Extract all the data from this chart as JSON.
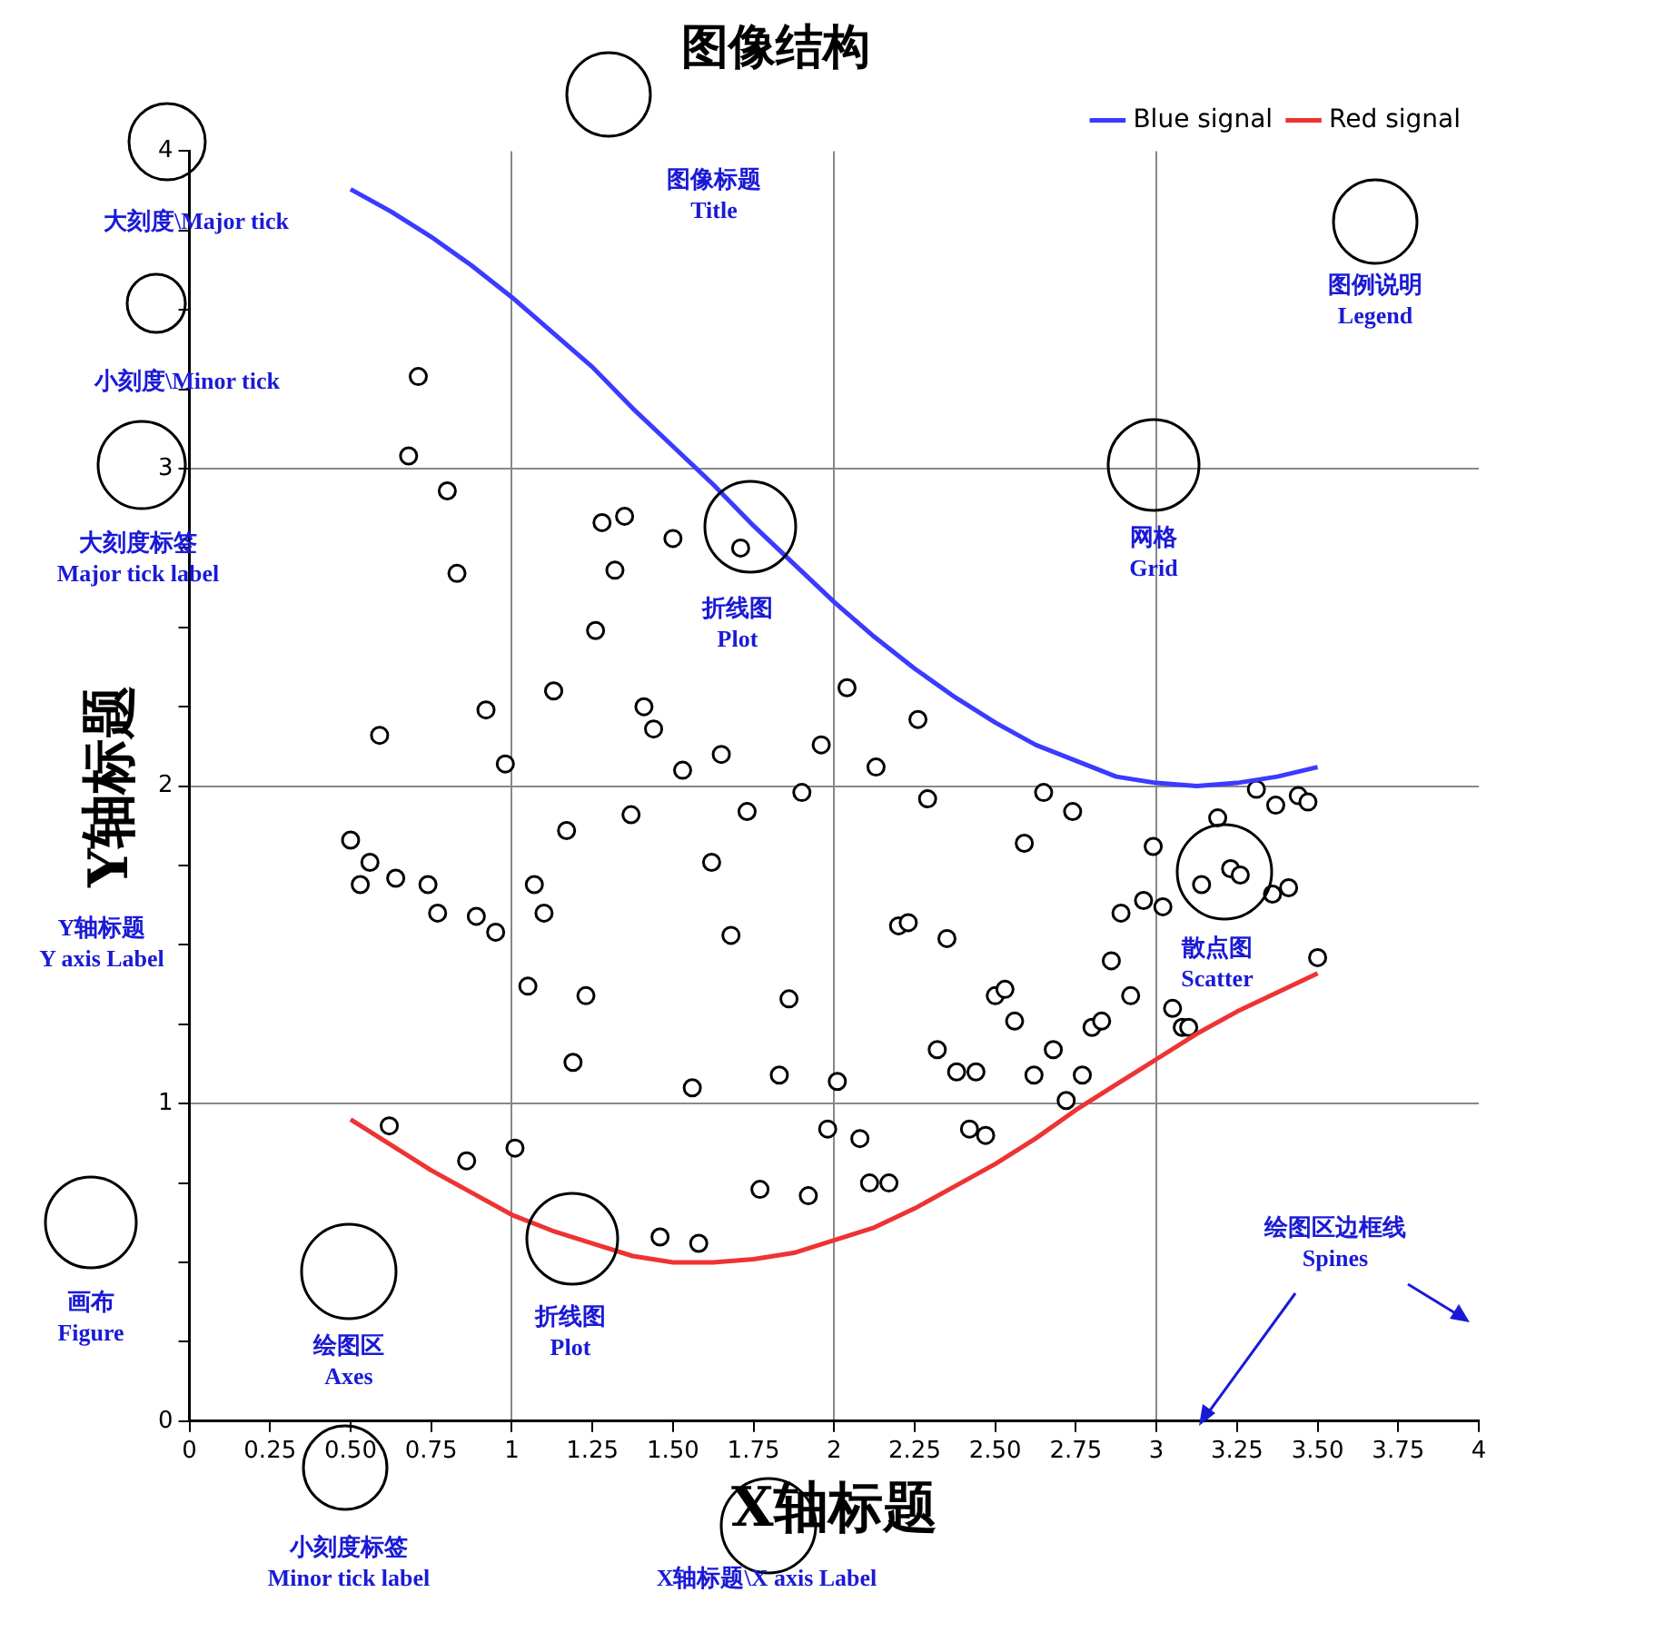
{
  "chart_data": {
    "type": "line",
    "title": "图像结构",
    "xlabel": "X轴标题",
    "ylabel": "Y轴标题",
    "xlim": [
      0,
      4
    ],
    "ylim": [
      0,
      4
    ],
    "xticks": [
      0,
      0.25,
      {
        "value": 0.5,
        "label": "0.50"
      },
      0.75,
      1,
      1.25,
      {
        "value": 1.5,
        "label": "1.50"
      },
      1.75,
      2,
      2.25,
      {
        "value": 2.5,
        "label": "2.50"
      },
      2.75,
      3,
      3.25,
      {
        "value": 3.5,
        "label": "3.50"
      },
      3.75,
      4
    ],
    "yticks": [
      0,
      {
        "value": 0.25,
        "label": null
      },
      {
        "value": 0.5,
        "label": null
      },
      {
        "value": 0.75,
        "label": null
      },
      1,
      {
        "value": 1.25,
        "label": null
      },
      {
        "value": 1.5,
        "label": null
      },
      {
        "value": 1.75,
        "label": null
      },
      2,
      {
        "value": 2.25,
        "label": null
      },
      {
        "value": 2.5,
        "label": null
      },
      {
        "value": 2.75,
        "label": null
      },
      3,
      {
        "value": 3.25,
        "label": null
      },
      {
        "value": 3.5,
        "label": null
      },
      {
        "value": 3.75,
        "label": null
      },
      4
    ],
    "grid": true,
    "legend": "top right",
    "line_style": "solid",
    "series": [
      {
        "name": "Blue signal",
        "type": "line",
        "color": "#3b3bff",
        "marker": "none",
        "x": [
          0.5,
          0.625,
          0.75,
          0.875,
          1,
          1.125,
          1.25,
          1.375,
          1.5,
          1.625,
          1.75,
          1.875,
          2,
          2.125,
          2.25,
          2.375,
          2.5,
          2.625,
          2.75,
          2.875,
          3,
          3.125,
          3.25,
          3.375,
          3.5
        ],
        "values": [
          3.88,
          3.81,
          3.73,
          3.64,
          3.54,
          3.43,
          3.32,
          3.19,
          3.07,
          2.95,
          2.82,
          2.7,
          2.58,
          2.47,
          2.37,
          2.28,
          2.2,
          2.13,
          2.08,
          2.03,
          2.01,
          2,
          2.01,
          2.03,
          2.06
        ]
      },
      {
        "name": "Red signal",
        "type": "line",
        "color": "#ee3333",
        "marker": "none",
        "x": [
          0.5,
          0.625,
          0.75,
          0.875,
          1,
          1.125,
          1.25,
          1.375,
          1.5,
          1.625,
          1.75,
          1.875,
          2,
          2.125,
          2.25,
          2.375,
          2.5,
          2.625,
          2.75,
          2.875,
          3,
          3.125,
          3.25,
          3.375,
          3.5
        ],
        "values": [
          0.95,
          0.87,
          0.79,
          0.72,
          0.65,
          0.6,
          0.56,
          0.52,
          0.5,
          0.5,
          0.51,
          0.53,
          0.57,
          0.61,
          0.67,
          0.74,
          0.81,
          0.89,
          0.98,
          1.06,
          1.14,
          1.22,
          1.29,
          1.35,
          1.41
        ]
      },
      {
        "type": "scatter",
        "color": "#000000",
        "marker": "circle",
        "x": [
          0.71,
          0.68,
          0.8,
          0.83,
          0.59,
          0.92,
          0.98,
          0.5,
          0.56,
          0.53,
          0.64,
          0.74,
          0.77,
          0.89,
          0.95,
          1.07,
          1.1,
          1.05,
          1.17,
          1.13,
          1.26,
          1.28,
          1.35,
          1.32,
          1.5,
          1.71,
          1.41,
          1.44,
          1.37,
          1.53,
          1.65,
          1.73,
          1.9,
          1.96,
          2.04,
          2.13,
          2.26,
          2.29,
          1.62,
          1.68,
          1.23,
          1.19,
          1.86,
          1.83,
          1.56,
          2.01,
          1.98,
          2.08,
          2.11,
          2.17,
          1.77,
          1.92,
          1.46,
          1.58,
          1.01,
          0.86,
          0.62,
          2.2,
          2.23,
          2.35,
          2.32,
          2.38,
          2.44,
          2.42,
          2.47,
          2.5,
          2.53,
          2.56,
          2.59,
          2.65,
          2.74,
          2.62,
          2.68,
          2.72,
          2.77,
          2.8,
          2.83,
          2.86,
          2.89,
          2.92,
          2.96,
          2.99,
          3.02,
          3.05,
          3.08,
          3.1,
          3.14,
          3.23,
          3.26,
          3.19,
          3.31,
          3.37,
          3.44,
          3.47,
          3.36,
          3.41,
          3.5
        ],
        "values": [
          3.29,
          3.04,
          2.93,
          2.67,
          2.16,
          2.24,
          2.07,
          1.83,
          1.76,
          1.69,
          1.71,
          1.69,
          1.6,
          1.59,
          1.54,
          1.69,
          1.6,
          1.37,
          1.86,
          2.3,
          2.49,
          2.83,
          2.85,
          2.68,
          2.78,
          2.75,
          2.25,
          2.18,
          1.91,
          2.05,
          2.1,
          1.92,
          1.98,
          2.13,
          2.31,
          2.06,
          2.21,
          1.96,
          1.76,
          1.53,
          1.34,
          1.13,
          1.33,
          1.09,
          1.05,
          1.07,
          0.92,
          0.89,
          0.75,
          0.75,
          0.73,
          0.71,
          0.58,
          0.56,
          0.86,
          0.82,
          0.93,
          1.56,
          1.57,
          1.52,
          1.17,
          1.1,
          1.1,
          0.92,
          0.9,
          1.34,
          1.36,
          1.26,
          1.82,
          1.98,
          1.92,
          1.09,
          1.17,
          1.01,
          1.09,
          1.24,
          1.26,
          1.45,
          1.6,
          1.34,
          1.64,
          1.81,
          1.62,
          1.3,
          1.24,
          1.24,
          1.69,
          1.74,
          1.72,
          1.9,
          1.99,
          1.94,
          1.97,
          1.95,
          1.66,
          1.68,
          1.46
        ]
      }
    ],
    "annotations": [
      "图像标题\nTitle",
      "大刻度\\Major tick",
      "小刻度\\Minor tick",
      "大刻度标签\nMajor tick label",
      "图例说明\nLegend",
      "网格\nGrid",
      "折线图\nPlot",
      "Y轴标题\nY axis Label",
      "散点图\nScatter",
      "画布\nFigure",
      "绘图区\nAxes",
      "折线图\nPlot",
      "绘图区边框线\nSpines",
      "小刻度标签\nMinor tick label",
      "X轴标题\\X axis Label"
    ]
  }
}
